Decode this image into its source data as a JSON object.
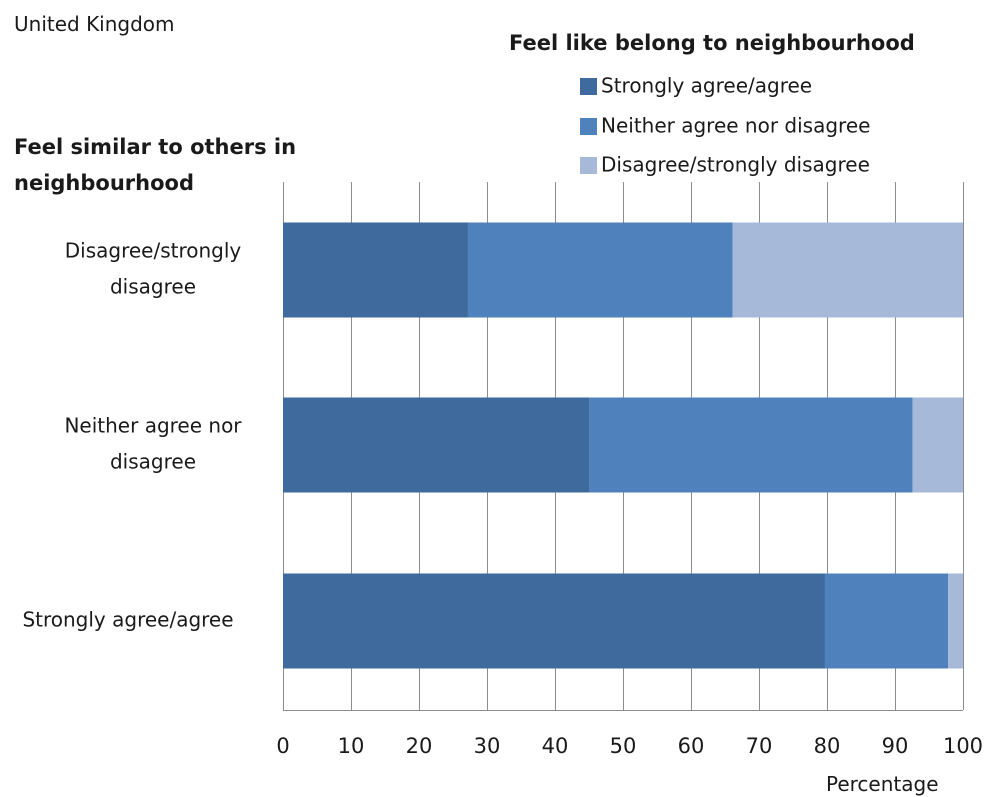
{
  "region_label": "United Kingdom",
  "chart_data": {
    "type": "bar",
    "orientation": "horizontal",
    "stacked": true,
    "title": "",
    "legend": {
      "title": "Feel  like belong to neighbourhood",
      "placement": "top-right",
      "entries": [
        "Strongly agree/agree",
        "Neither agree nor disagree",
        "Disagree/strongly disagree"
      ]
    },
    "ylabel_lines": [
      "Feel similar to others in",
      "neighbourhood"
    ],
    "xlabel": "Percentage",
    "xlim": [
      0,
      100
    ],
    "xticks": [
      "0",
      "10",
      "20",
      "30",
      "40",
      "50",
      "60",
      "70",
      "80",
      "90",
      "100"
    ],
    "grid": "vertical",
    "categories": [
      {
        "lines": [
          "Disagree/strongly",
          "disagree"
        ]
      },
      {
        "lines": [
          "Neither agree nor",
          "disagree"
        ]
      },
      {
        "lines": [
          "Strongly agree/agree"
        ]
      }
    ],
    "series": [
      {
        "name": "Strongly agree/agree",
        "color": "#3f6a9e",
        "values": [
          27.2,
          45.1,
          79.7
        ]
      },
      {
        "name": "Neither agree nor disagree",
        "color": "#4f81bd",
        "values": [
          38.9,
          47.5,
          18.1
        ]
      },
      {
        "name": "Disagree/strongly disagree",
        "color": "#a7b9d9",
        "values": [
          33.9,
          7.4,
          2.2
        ]
      }
    ]
  }
}
